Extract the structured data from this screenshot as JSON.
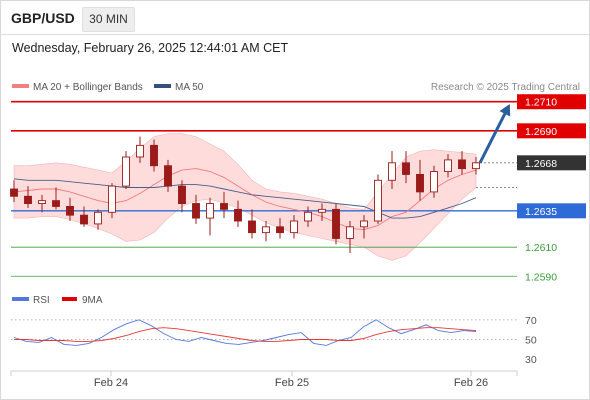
{
  "header": {
    "pair": "GBP/USD",
    "timeframe": "30 MIN"
  },
  "timestamp": "Wednesday, February 26, 2025 12:44:01 AM CET",
  "legend": {
    "ma": "MA 20 + Bollinger Bands",
    "ma50": "MA 50",
    "source": "Research © 2025 Trading Central"
  },
  "rsi_legend": {
    "rsi": "RSI",
    "ma9": "9MA"
  },
  "colors": {
    "resistance": "#e00000",
    "support": "#2f6bd6",
    "support_green": "#3a9d3a",
    "candle": "#9b1b1b",
    "bollinger": "#ffd0d0",
    "ma50": "#4a5e8a",
    "rsi": "#5577dd",
    "ma9": "#e53935",
    "arrow": "#2c5f9e",
    "current": "#333333"
  },
  "chart_data": [
    {
      "type": "candlestick",
      "x_ticks": [
        "Feb 24",
        "Feb 25",
        "Feb 26"
      ],
      "ylim": [
        1.2584,
        1.2716
      ],
      "levels": [
        {
          "label": "1.2710",
          "value": 1.271,
          "kind": "resistance"
        },
        {
          "label": "1.2690",
          "value": 1.269,
          "kind": "resistance"
        },
        {
          "label": "1.2668",
          "value": 1.2668,
          "kind": "current"
        },
        {
          "label": "1.2635",
          "value": 1.2635,
          "kind": "support"
        },
        {
          "label": "1.2610",
          "value": 1.261,
          "kind": "support2"
        },
        {
          "label": "1.2590",
          "value": 1.259,
          "kind": "support2"
        }
      ],
      "series": [
        {
          "name": "MA 20",
          "values": [
            1.2648,
            1.2649,
            1.265,
            1.265,
            1.2648,
            1.2645,
            1.2642,
            1.264,
            1.2642,
            1.2647,
            1.2653,
            1.2659,
            1.2663,
            1.2664,
            1.2662,
            1.2658,
            1.2652,
            1.2646,
            1.2641,
            1.2638,
            1.2636,
            1.2634,
            1.2631,
            1.2627,
            1.2623,
            1.2622,
            1.2625,
            1.2631,
            1.2634,
            1.2642,
            1.265,
            1.2656,
            1.266,
            1.2663
          ]
        },
        {
          "name": "MA 50",
          "values": [
            1.2657,
            1.2656,
            1.2656,
            1.2656,
            1.2655,
            1.2654,
            1.2653,
            1.2652,
            1.2651,
            1.2651,
            1.2651,
            1.2652,
            1.2653,
            1.2653,
            1.2652,
            1.265,
            1.2648,
            1.2646,
            1.2645,
            1.2644,
            1.2643,
            1.2642,
            1.2641,
            1.264,
            1.2639,
            1.2638,
            1.2634,
            1.263,
            1.263,
            1.2631,
            1.2634,
            1.2637,
            1.264,
            1.2644
          ]
        },
        {
          "name": "Bollinger upper",
          "values": [
            1.2666,
            1.2666,
            1.2667,
            1.2668,
            1.2667,
            1.2665,
            1.2663,
            1.2661,
            1.2669,
            1.2678,
            1.2686,
            1.2688,
            1.2688,
            1.2686,
            1.2681,
            1.2676,
            1.2667,
            1.2656,
            1.265,
            1.2648,
            1.2647,
            1.2645,
            1.2643,
            1.264,
            1.2637,
            1.2636,
            1.2648,
            1.266,
            1.2672,
            1.2676,
            1.2677,
            1.2676,
            1.2675,
            1.2674
          ]
        },
        {
          "name": "Bollinger lower",
          "values": [
            1.263,
            1.263,
            1.2631,
            1.2631,
            1.2629,
            1.2626,
            1.2623,
            1.2619,
            1.2614,
            1.2615,
            1.262,
            1.263,
            1.2638,
            1.2642,
            1.2643,
            1.264,
            1.2637,
            1.2632,
            1.2627,
            1.2623,
            1.262,
            1.2618,
            1.2616,
            1.2614,
            1.2612,
            1.261,
            1.2604,
            1.2601,
            1.2604,
            1.2613,
            1.2623,
            1.2633,
            1.2643,
            1.2651
          ]
        }
      ],
      "candles": [
        {
          "o": 1.265,
          "h": 1.2656,
          "l": 1.2641,
          "c": 1.2645
        },
        {
          "o": 1.2645,
          "h": 1.2652,
          "l": 1.2637,
          "c": 1.264
        },
        {
          "o": 1.264,
          "h": 1.2646,
          "l": 1.2634,
          "c": 1.2642
        },
        {
          "o": 1.2642,
          "h": 1.2651,
          "l": 1.2636,
          "c": 1.2638
        },
        {
          "o": 1.2638,
          "h": 1.2644,
          "l": 1.2628,
          "c": 1.2632
        },
        {
          "o": 1.2632,
          "h": 1.2638,
          "l": 1.2624,
          "c": 1.2626
        },
        {
          "o": 1.2626,
          "h": 1.2636,
          "l": 1.2622,
          "c": 1.2634
        },
        {
          "o": 1.2634,
          "h": 1.2654,
          "l": 1.263,
          "c": 1.2652
        },
        {
          "o": 1.2652,
          "h": 1.2676,
          "l": 1.265,
          "c": 1.2672
        },
        {
          "o": 1.2672,
          "h": 1.2686,
          "l": 1.2668,
          "c": 1.268
        },
        {
          "o": 1.268,
          "h": 1.2684,
          "l": 1.2662,
          "c": 1.2666
        },
        {
          "o": 1.2666,
          "h": 1.267,
          "l": 1.2648,
          "c": 1.2652
        },
        {
          "o": 1.2652,
          "h": 1.2656,
          "l": 1.2634,
          "c": 1.264
        },
        {
          "o": 1.264,
          "h": 1.2646,
          "l": 1.2626,
          "c": 1.263
        },
        {
          "o": 1.263,
          "h": 1.2644,
          "l": 1.2618,
          "c": 1.264
        },
        {
          "o": 1.264,
          "h": 1.2648,
          "l": 1.263,
          "c": 1.2636
        },
        {
          "o": 1.2636,
          "h": 1.2642,
          "l": 1.2624,
          "c": 1.2628
        },
        {
          "o": 1.2628,
          "h": 1.2636,
          "l": 1.2616,
          "c": 1.262
        },
        {
          "o": 1.262,
          "h": 1.2628,
          "l": 1.2614,
          "c": 1.2624
        },
        {
          "o": 1.2624,
          "h": 1.263,
          "l": 1.2616,
          "c": 1.262
        },
        {
          "o": 1.262,
          "h": 1.2632,
          "l": 1.2616,
          "c": 1.2628
        },
        {
          "o": 1.2628,
          "h": 1.2638,
          "l": 1.2624,
          "c": 1.2634
        },
        {
          "o": 1.2634,
          "h": 1.264,
          "l": 1.2628,
          "c": 1.2636
        },
        {
          "o": 1.2636,
          "h": 1.264,
          "l": 1.2612,
          "c": 1.2616
        },
        {
          "o": 1.2616,
          "h": 1.2628,
          "l": 1.2606,
          "c": 1.2624
        },
        {
          "o": 1.2624,
          "h": 1.2632,
          "l": 1.2616,
          "c": 1.2628
        },
        {
          "o": 1.2628,
          "h": 1.266,
          "l": 1.2626,
          "c": 1.2656
        },
        {
          "o": 1.2656,
          "h": 1.2676,
          "l": 1.265,
          "c": 1.2668
        },
        {
          "o": 1.2668,
          "h": 1.2676,
          "l": 1.2654,
          "c": 1.266
        },
        {
          "o": 1.266,
          "h": 1.267,
          "l": 1.2642,
          "c": 1.2648
        },
        {
          "o": 1.2648,
          "h": 1.2666,
          "l": 1.2644,
          "c": 1.2662
        },
        {
          "o": 1.2662,
          "h": 1.2674,
          "l": 1.2658,
          "c": 1.267
        },
        {
          "o": 1.267,
          "h": 1.2676,
          "l": 1.266,
          "c": 1.2664
        },
        {
          "o": 1.2664,
          "h": 1.2672,
          "l": 1.266,
          "c": 1.2668
        }
      ]
    },
    {
      "type": "line",
      "title": "",
      "y_ticks": [
        70,
        50,
        30
      ],
      "ylim": [
        25,
        78
      ],
      "series": [
        {
          "name": "RSI",
          "values": [
            52,
            48,
            47,
            52,
            45,
            44,
            46,
            52,
            60,
            66,
            70,
            64,
            56,
            50,
            48,
            52,
            49,
            46,
            45,
            47,
            49,
            52,
            55,
            57,
            46,
            44,
            49,
            52,
            63,
            70,
            62,
            56,
            60,
            65,
            59,
            57,
            59,
            58
          ]
        },
        {
          "name": "9MA",
          "values": [
            50,
            50,
            49,
            49,
            49,
            48,
            48,
            49,
            51,
            54,
            58,
            61,
            62,
            61,
            59,
            57,
            55,
            53,
            51,
            49,
            48,
            48,
            49,
            50,
            50,
            50,
            49,
            49,
            51,
            55,
            58,
            60,
            61,
            62,
            62,
            61,
            60,
            59
          ]
        }
      ]
    }
  ]
}
